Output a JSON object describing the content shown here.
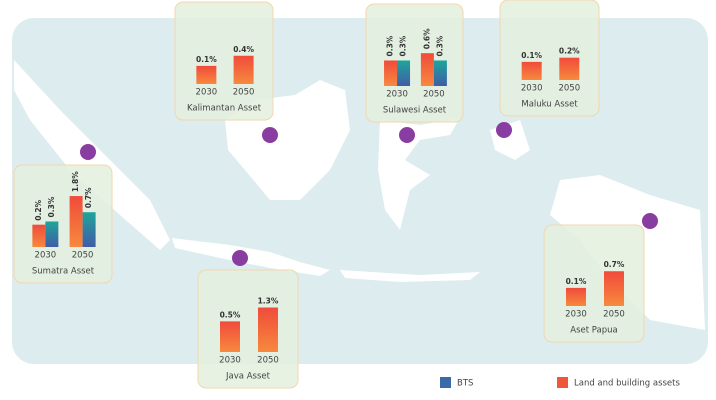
{
  "legend": [
    {
      "name": "BTS",
      "color": "#3a6aa8"
    },
    {
      "name": "Land and building assets",
      "color": "#f0563a"
    }
  ],
  "regions": [
    {
      "name": "Kalimantan Asset",
      "categories": [
        "2030",
        "2050"
      ],
      "land": {
        "values": [
          0.1,
          0.4
        ],
        "value_labels": [
          "0.1%",
          "0.4%"
        ]
      }
    },
    {
      "name": "Sulawesi Asset",
      "categories": [
        "2030",
        "2050"
      ],
      "land": {
        "values": [
          0.3,
          0.6
        ],
        "value_labels": [
          "0.3%",
          "0.6%"
        ]
      },
      "bts": {
        "values": [
          0.3,
          0.3
        ],
        "value_labels": [
          "0.3%",
          "0.3%"
        ]
      }
    },
    {
      "name": "Maluku Asset",
      "categories": [
        "2030",
        "2050"
      ],
      "land": {
        "values": [
          0.1,
          0.2
        ],
        "value_labels": [
          "0.1%",
          "0.2%"
        ]
      }
    },
    {
      "name": "Sumatra Asset",
      "categories": [
        "2030",
        "2050"
      ],
      "land": {
        "values": [
          0.2,
          1.8
        ],
        "value_labels": [
          "0.2%",
          "1.8%"
        ]
      },
      "bts": {
        "values": [
          0.3,
          0.7
        ],
        "value_labels": [
          "0.3%",
          "0.7%"
        ]
      }
    },
    {
      "name": "Java Asset",
      "categories": [
        "2030",
        "2050"
      ],
      "land": {
        "values": [
          0.5,
          1.3
        ],
        "value_labels": [
          "0.5%",
          "1.3%"
        ]
      }
    },
    {
      "name": "Aset Papua",
      "categories": [
        "2030",
        "2050"
      ],
      "land": {
        "values": [
          0.1,
          0.7
        ],
        "value_labels": [
          "0.1%",
          "0.7%"
        ]
      }
    }
  ]
}
